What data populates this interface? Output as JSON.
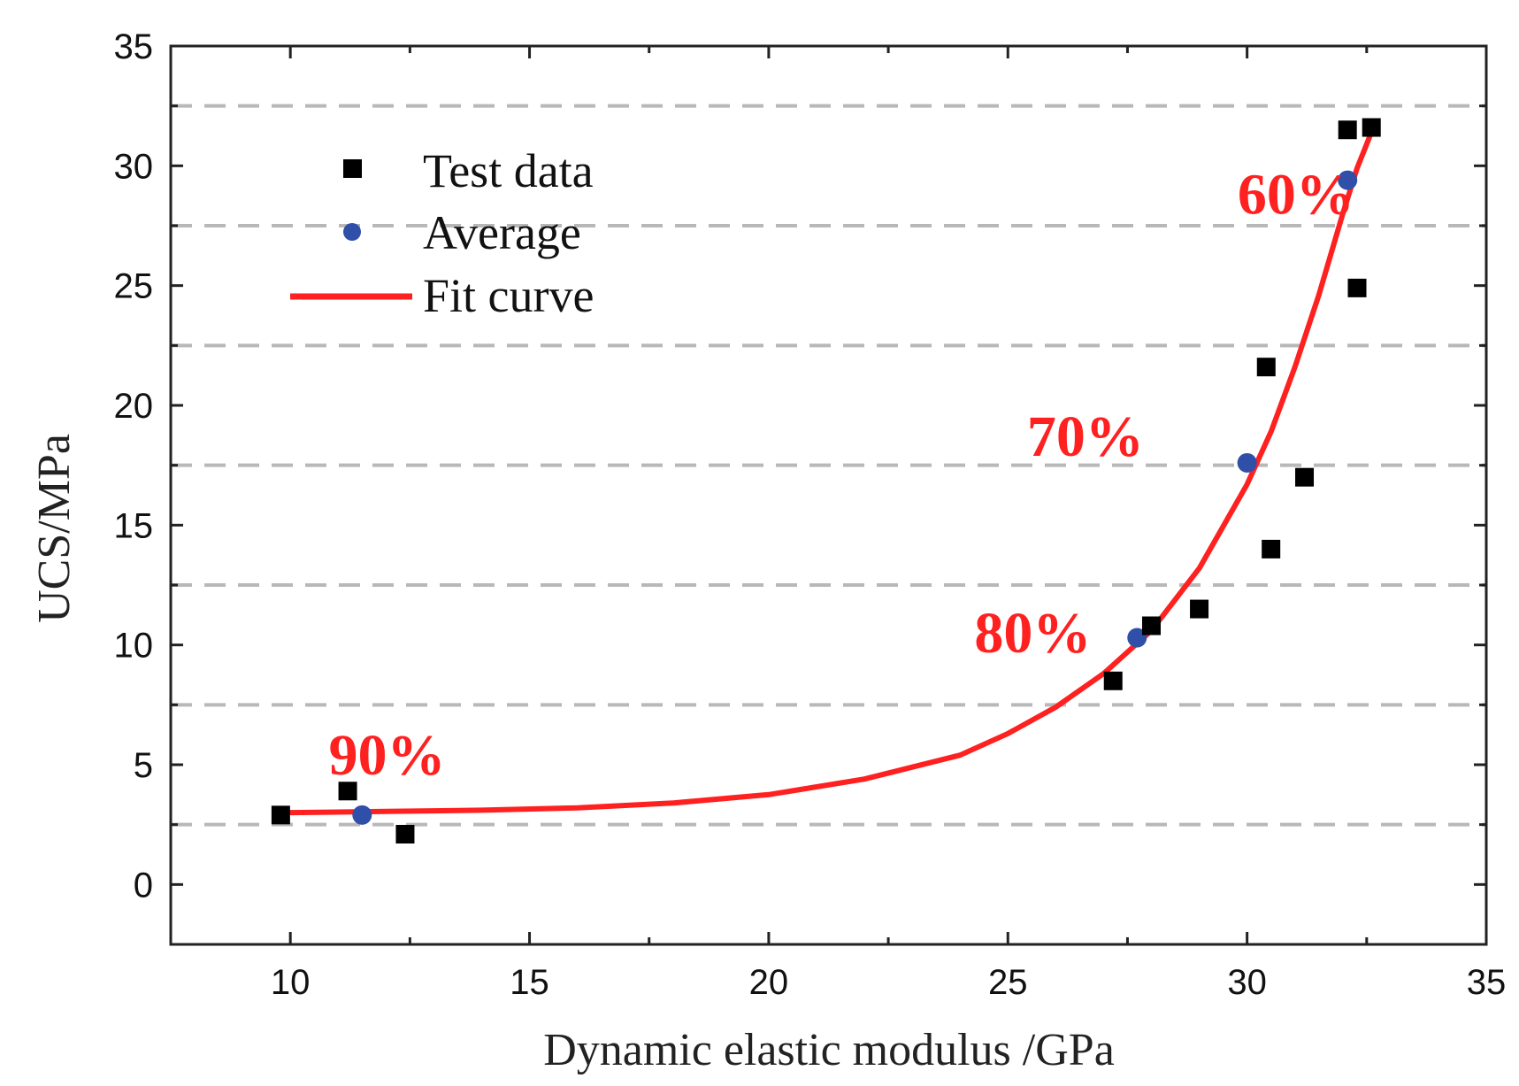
{
  "chart_data": {
    "type": "scatter",
    "title": "",
    "xlabel": "Dynamic elastic modulus /GPa",
    "ylabel": "UCS/MPa",
    "xlim": [
      7.5,
      35
    ],
    "ylim": [
      -2.5,
      35
    ],
    "x_ticks": [
      10,
      15,
      20,
      25,
      30,
      35
    ],
    "y_ticks": [
      0,
      5,
      10,
      15,
      20,
      25,
      30,
      35
    ],
    "gridlines_y": [
      2.5,
      7.5,
      12.5,
      17.5,
      22.5,
      27.5,
      32.5
    ],
    "grid": "horizontal dashed at half-steps",
    "legend_position": "top-left",
    "colors": {
      "test": "#000000",
      "average": "#2f4fa8",
      "fit": "#ff2020",
      "annotation": "#ff2020",
      "grid": "#b8b8b8",
      "axis": "#222222"
    },
    "series": [
      {
        "name": "Test data",
        "marker": "square",
        "x": [
          9.8,
          11.2,
          12.4,
          27.2,
          28.0,
          29.0,
          30.4,
          30.5,
          31.2,
          32.1,
          32.3,
          32.6
        ],
        "y": [
          2.9,
          3.9,
          2.1,
          8.5,
          10.8,
          11.5,
          21.6,
          14.0,
          17.0,
          31.5,
          24.9,
          31.6
        ]
      },
      {
        "name": "Average",
        "marker": "circle",
        "x": [
          11.5,
          27.7,
          30.0,
          32.1
        ],
        "y": [
          2.9,
          10.3,
          17.6,
          29.4
        ]
      },
      {
        "name": "Fit curve",
        "marker": "line",
        "x": [
          10.0,
          12.0,
          14.0,
          16.0,
          18.0,
          20.0,
          22.0,
          24.0,
          25.0,
          26.0,
          27.0,
          28.0,
          29.0,
          30.0,
          30.5,
          31.0,
          31.5,
          32.0,
          32.3,
          32.6
        ],
        "y": [
          3.0,
          3.05,
          3.1,
          3.2,
          3.4,
          3.75,
          4.4,
          5.4,
          6.3,
          7.4,
          8.8,
          10.6,
          13.2,
          16.7,
          18.9,
          21.6,
          24.6,
          28.0,
          29.9,
          31.4
        ]
      }
    ],
    "annotations": [
      {
        "text": "90%",
        "x": 10.8,
        "y": 4.6
      },
      {
        "text": "80%",
        "x": 24.3,
        "y": 9.7
      },
      {
        "text": "70%",
        "x": 25.4,
        "y": 17.9
      },
      {
        "text": "60%",
        "x": 29.8,
        "y": 28.0
      }
    ]
  }
}
